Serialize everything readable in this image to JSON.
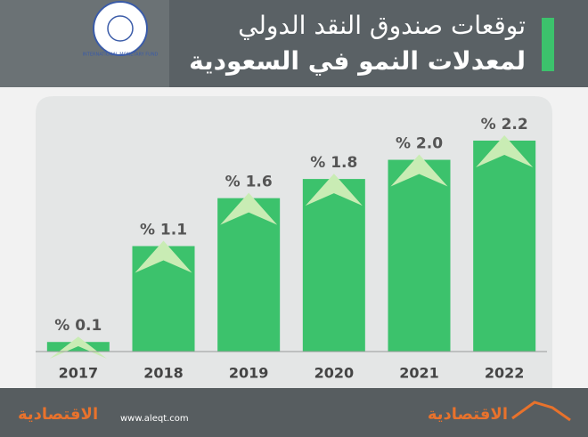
{
  "chart_data": {
    "type": "bar",
    "title": "توقعات صندوق النقد الدولي",
    "subtitle": "لمعدلات النمو في السعودية",
    "logo_text": "INTERNATIONAL MONETARY FUND",
    "categories": [
      "2017",
      "2018",
      "2019",
      "2020",
      "2021",
      "2022"
    ],
    "values": [
      0.1,
      1.1,
      1.6,
      1.8,
      2.0,
      2.2
    ],
    "value_labels": [
      "% 0.1",
      "% 1.1",
      "% 1.6",
      "% 1.8",
      "% 2.0",
      "% 2.2"
    ],
    "color": "#3cc26c",
    "ylim": [
      0,
      2.2
    ],
    "footer": {
      "website": "www.aleqt.com",
      "brand": "الاقتصادية"
    }
  }
}
